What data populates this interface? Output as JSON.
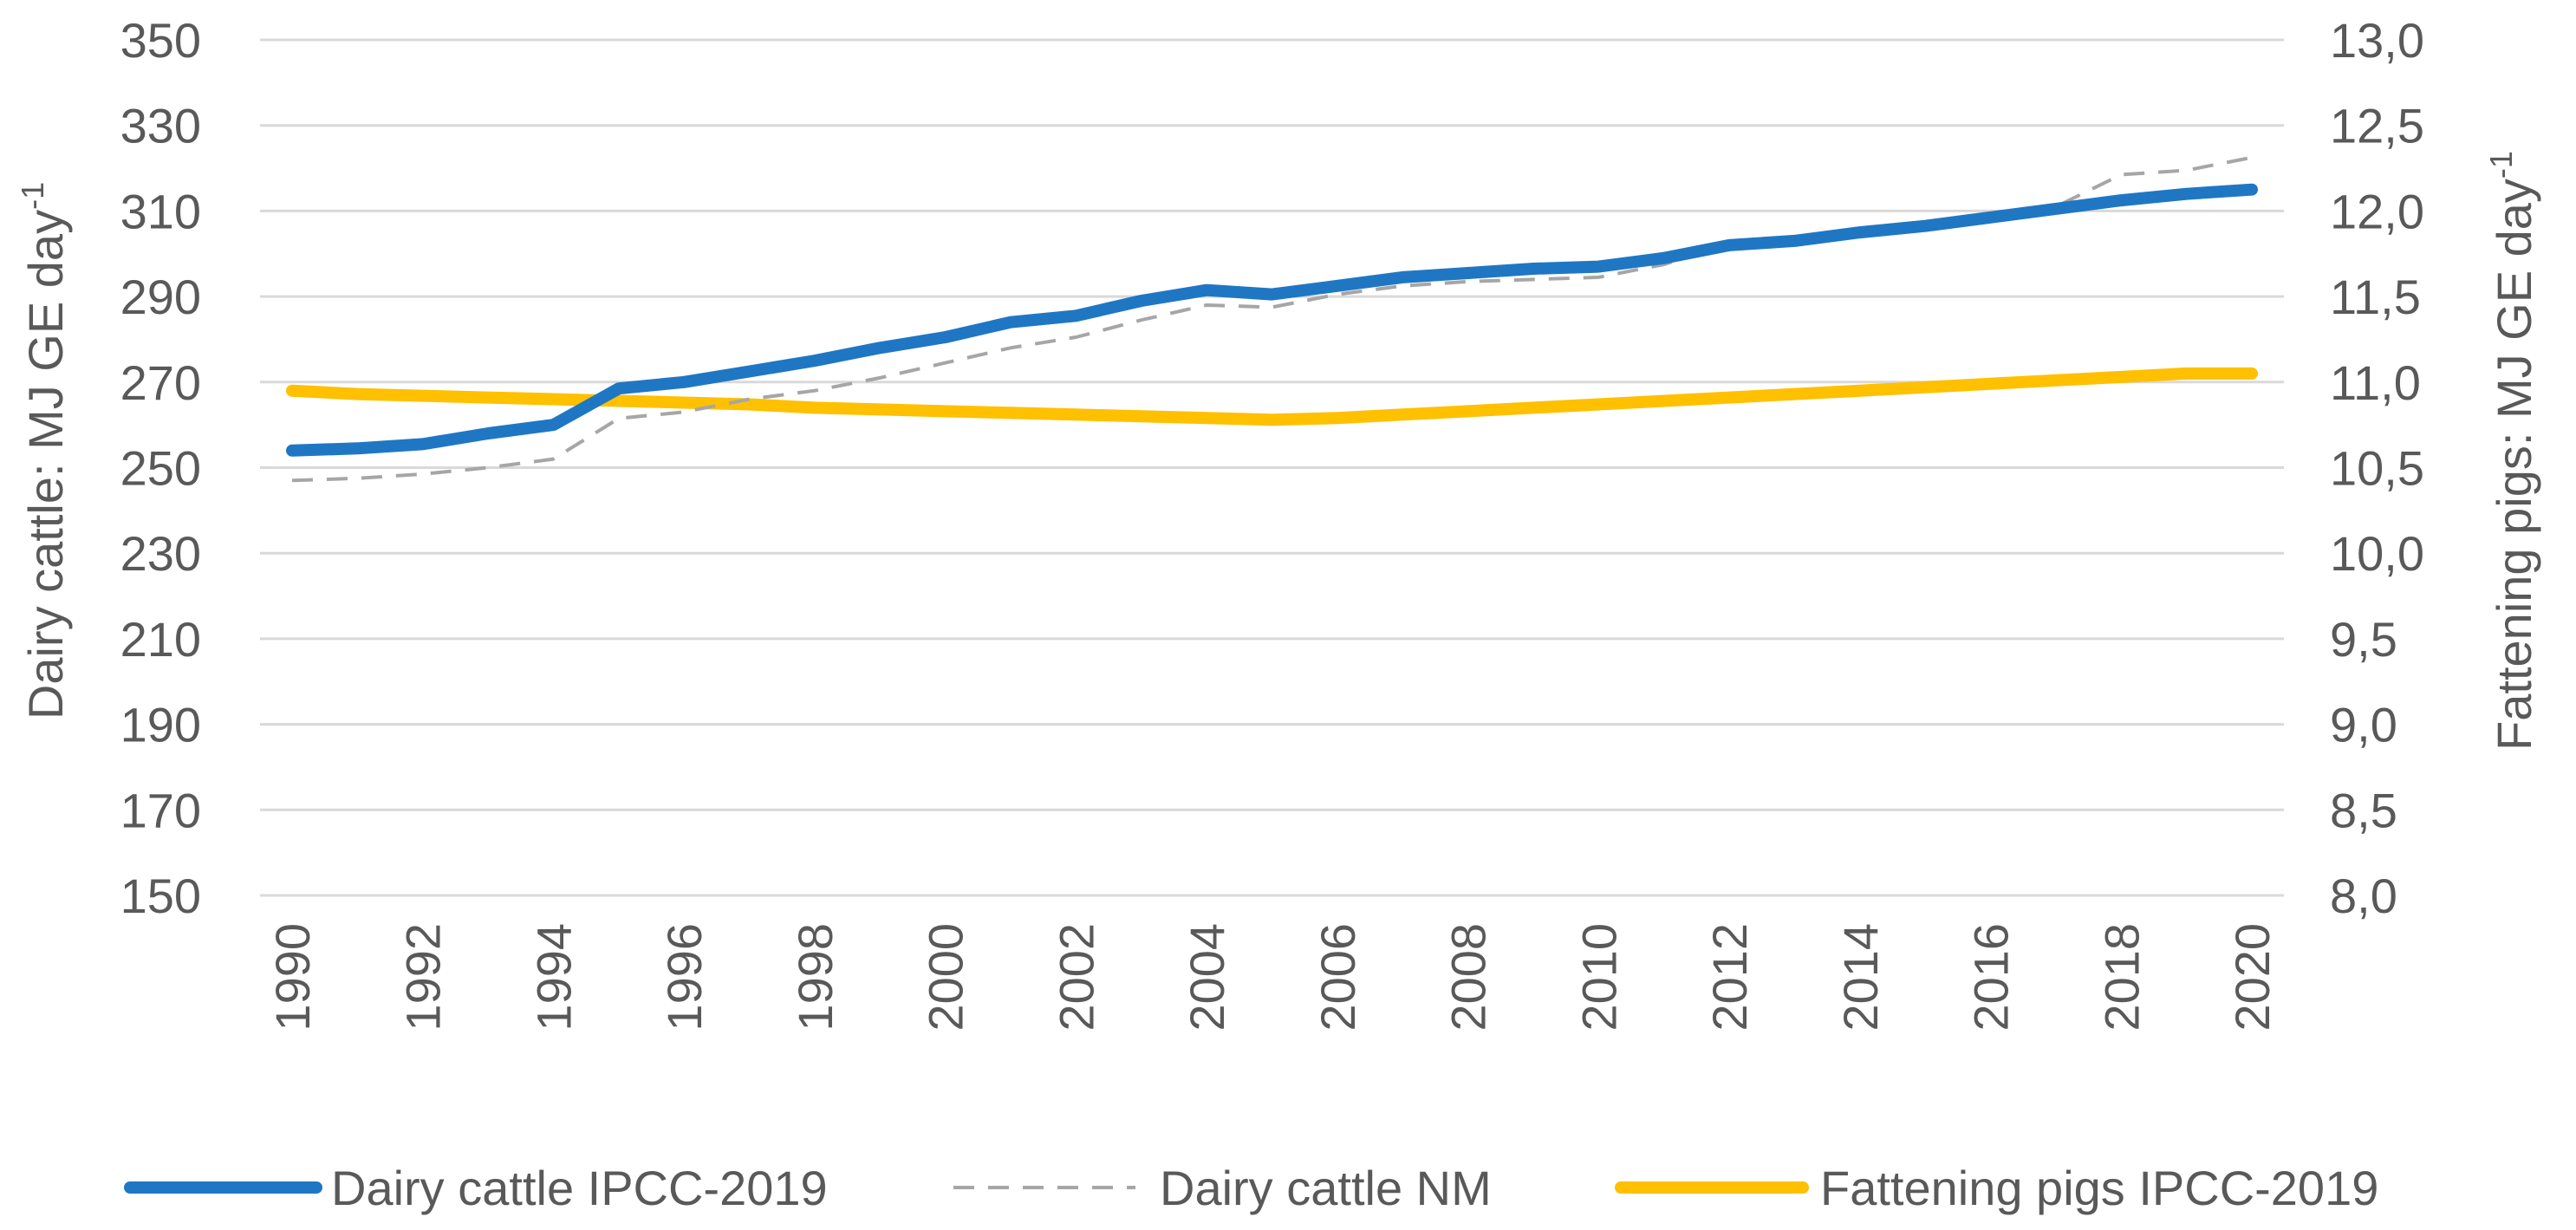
{
  "chart_data": {
    "type": "line",
    "title": "",
    "x": [
      1990,
      1991,
      1992,
      1993,
      1994,
      1995,
      1996,
      1997,
      1998,
      1999,
      2000,
      2001,
      2002,
      2003,
      2004,
      2005,
      2006,
      2007,
      2008,
      2009,
      2010,
      2011,
      2012,
      2013,
      2014,
      2015,
      2016,
      2017,
      2018,
      2019,
      2020
    ],
    "x_tick_labels": [
      "1990",
      "1992",
      "1994",
      "1996",
      "1998",
      "2000",
      "2002",
      "2004",
      "2006",
      "2008",
      "2010",
      "2012",
      "2014",
      "2016",
      "2018",
      "2020"
    ],
    "ylabel_left": {
      "main": "Dairy cattle: MJ GE day",
      "sup": "-1"
    },
    "ylabel_right": {
      "main": "Fattening pigs: MJ GE day",
      "sup": "-1"
    },
    "ylim_left": [
      150,
      350
    ],
    "ylim_right": [
      8.0,
      13.0
    ],
    "y_left_tick_labels": [
      "150",
      "170",
      "190",
      "210",
      "230",
      "250",
      "270",
      "290",
      "310",
      "330",
      "350"
    ],
    "y_right_tick_labels": [
      "8,0",
      "8,5",
      "9,0",
      "9,5",
      "10,0",
      "10,5",
      "11,0",
      "11,5",
      "12,0",
      "12,5",
      "13,0"
    ],
    "grid": true,
    "legend_position": "bottom",
    "series": [
      {
        "name": "Dairy cattle IPCC-2019",
        "axis": "left",
        "color": "#1f77c4",
        "style": "solid-thick",
        "values": [
          254,
          254.5,
          255.5,
          258,
          260,
          268.5,
          270,
          272.5,
          275,
          278,
          280.5,
          284,
          285.5,
          289,
          291.5,
          290.5,
          292.5,
          294.5,
          295.5,
          296.5,
          297,
          299,
          302,
          303,
          305,
          306.5,
          308.5,
          310.5,
          312.5,
          314,
          315
        ]
      },
      {
        "name": "Dairy cattle NM",
        "axis": "left",
        "color": "#a6a6a6",
        "style": "dashed",
        "values": [
          247,
          247.5,
          248.5,
          250,
          252,
          261.5,
          263,
          266,
          268,
          271,
          274.5,
          278,
          280.5,
          284.5,
          288,
          287.5,
          290.5,
          292.5,
          293.5,
          294,
          294.5,
          297.5,
          302.5,
          304,
          305.5,
          306.5,
          309,
          311,
          318.5,
          319.5,
          322.5
        ]
      },
      {
        "name": "Fattening pigs IPCC-2019",
        "axis": "right",
        "color": "#ffc000",
        "style": "solid-thick",
        "values": [
          10.95,
          10.93,
          10.92,
          10.91,
          10.9,
          10.89,
          10.88,
          10.87,
          10.85,
          10.84,
          10.83,
          10.82,
          10.81,
          10.8,
          10.79,
          10.78,
          10.79,
          10.81,
          10.83,
          10.85,
          10.87,
          10.89,
          10.91,
          10.93,
          10.95,
          10.97,
          10.99,
          11.01,
          11.03,
          11.05,
          11.05
        ]
      }
    ]
  }
}
